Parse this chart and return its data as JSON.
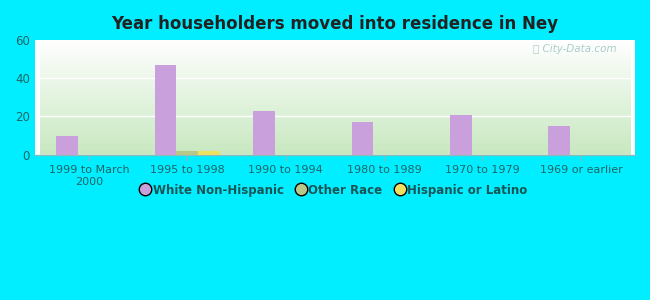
{
  "title": "Year householders moved into residence in Ney",
  "categories": [
    "1999 to March\n2000",
    "1995 to 1998",
    "1990 to 1994",
    "1980 to 1989",
    "1970 to 1979",
    "1969 or earlier"
  ],
  "white_non_hispanic": [
    10,
    47,
    23,
    17,
    21,
    15
  ],
  "other_race": [
    0,
    2,
    0,
    0,
    0,
    0
  ],
  "hispanic_or_latino": [
    0,
    2,
    0,
    0,
    0,
    0
  ],
  "white_color": "#c9a0dc",
  "other_race_color": "#b8c888",
  "hispanic_color": "#f0e060",
  "ylim": [
    0,
    60
  ],
  "yticks": [
    0,
    20,
    40,
    60
  ],
  "background_outer": "#00eeff",
  "grid_color": "#ffffff",
  "title_color": "#333333",
  "bar_width": 0.22,
  "legend_labels": [
    "White Non-Hispanic",
    "Other Race",
    "Hispanic or Latino"
  ],
  "watermark_color": "#aacccc"
}
